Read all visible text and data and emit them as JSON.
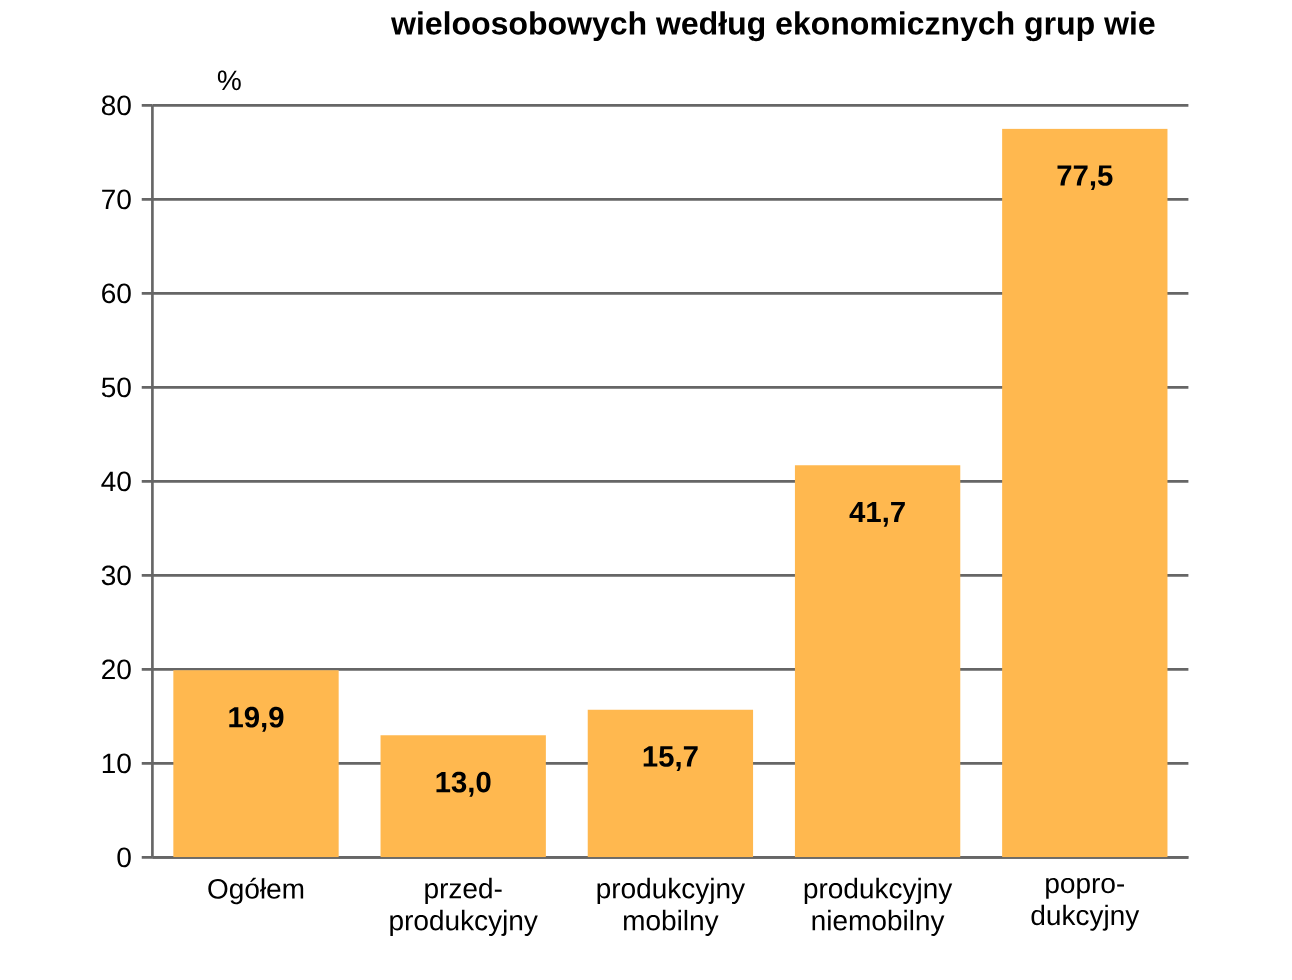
{
  "chart_data": {
    "type": "bar",
    "title": "wieloosobowych według ekonomicznych grup wie",
    "ylabel": "%",
    "categories": [
      "Ogółem",
      "przed- produkcyjny",
      "produkcyjny mobilny",
      "produkcyjny niemobilny",
      "popro- dukcyjny"
    ],
    "values": [
      19.9,
      13.0,
      15.7,
      41.7,
      77.5
    ],
    "value_labels": [
      "19,9",
      "13,0",
      "15,7",
      "41,7",
      "77,5"
    ],
    "color": "#ffb84f",
    "ylim": [
      0,
      80
    ],
    "yticks": [
      0,
      10,
      20,
      30,
      40,
      50,
      60,
      70,
      80
    ],
    "grid": "y"
  }
}
